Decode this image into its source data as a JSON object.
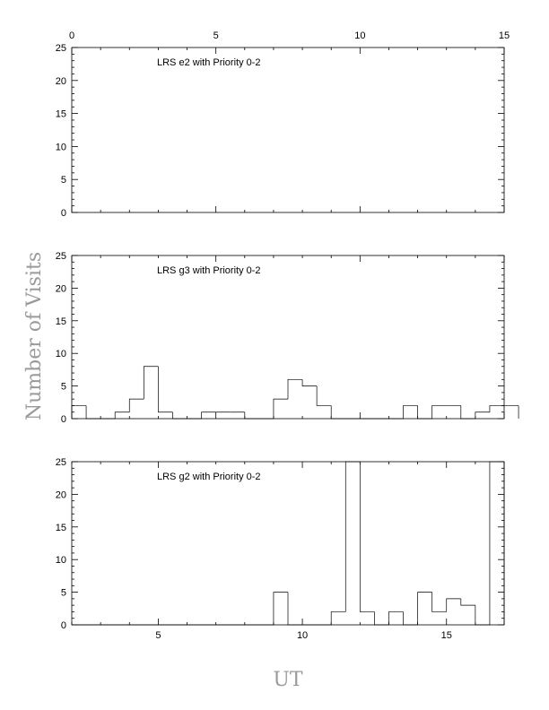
{
  "chart_data": [
    {
      "type": "bar",
      "title": "LRS e2 with Priority 0-2",
      "top_axis_ticks": [
        "0",
        "5",
        "10",
        "15"
      ],
      "top_axis_range": [
        0,
        15
      ],
      "y_ticks": [
        "0",
        "5",
        "10",
        "15",
        "20",
        "25"
      ],
      "ylim": [
        0,
        25
      ],
      "xlim": [
        0,
        15
      ],
      "bin_width": 0.5,
      "values": []
    },
    {
      "type": "bar",
      "title": "LRS g3 with Priority 0-2",
      "y_ticks": [
        "0",
        "5",
        "10",
        "15",
        "20",
        "25"
      ],
      "ylim": [
        0,
        25
      ],
      "xlim": [
        0,
        15
      ],
      "bin_width": 0.5,
      "values": [
        2,
        0,
        0,
        1,
        3,
        8,
        1,
        0,
        0,
        1,
        1,
        1,
        0,
        0,
        3,
        6,
        5,
        2,
        0,
        0,
        0,
        0,
        0,
        2,
        0,
        2,
        2,
        0,
        1,
        2,
        2
      ]
    },
    {
      "type": "bar",
      "title": "LRS g2 with Priority 0-2",
      "xlabel": "UT",
      "ylabel": "Number of Visits",
      "x_ticks": [
        "5",
        "10",
        "15"
      ],
      "x_tick_values": [
        5,
        10,
        15
      ],
      "y_ticks": [
        "0",
        "5",
        "10",
        "15",
        "20",
        "25"
      ],
      "ylim": [
        0,
        25
      ],
      "xlim": [
        2,
        17
      ],
      "bin_width": 0.5,
      "values": [
        0,
        0,
        0,
        0,
        0,
        0,
        0,
        0,
        0,
        0,
        0,
        0,
        0,
        0,
        5,
        0,
        0,
        0,
        2,
        25,
        2,
        0,
        2,
        0,
        5,
        2,
        4,
        3,
        0,
        25
      ]
    }
  ]
}
